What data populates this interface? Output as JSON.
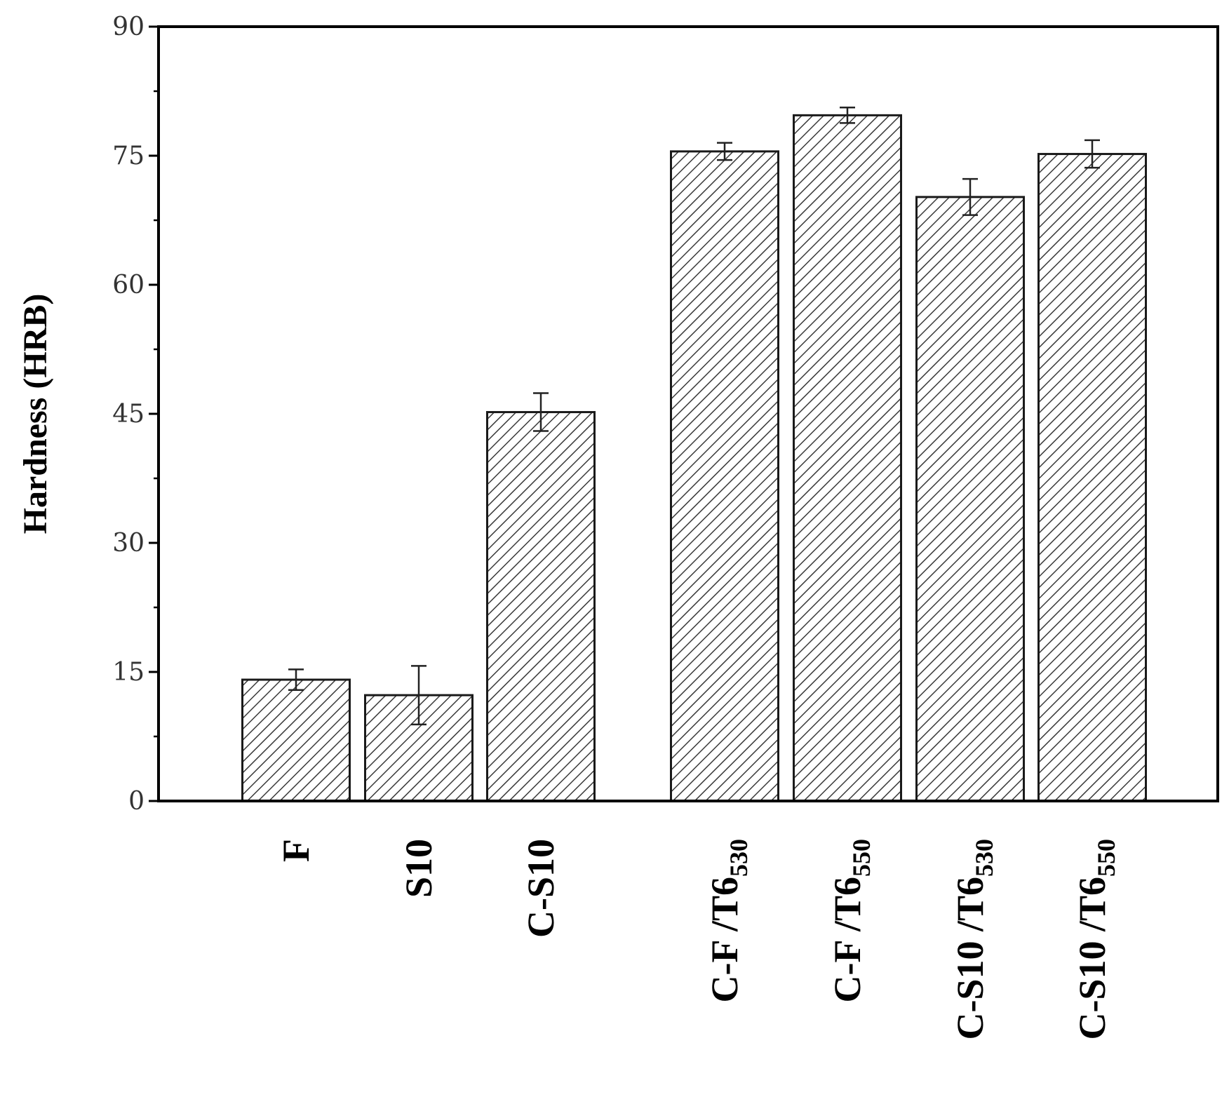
{
  "chart_data": {
    "type": "bar",
    "ylabel": "Hardness (HRB)",
    "xlabel": "",
    "ylim": [
      0,
      90
    ],
    "yticks": [
      "0",
      "15",
      "30",
      "45",
      "60",
      "75",
      "90"
    ],
    "grid": false,
    "legend": "none",
    "bar_fill": "hatched-diagonal",
    "colors": {
      "bar_stroke": "#1a1a1a",
      "hatch": "#3a3a3a",
      "axis": "#000000",
      "tick_text": "#333333"
    },
    "categories": [
      {
        "main": "F",
        "sub": ""
      },
      {
        "main": "S10",
        "sub": ""
      },
      {
        "main": "C-S10",
        "sub": ""
      },
      {
        "main": "C-F /T6",
        "sub": "530"
      },
      {
        "main": "C-F /T6",
        "sub": "550"
      },
      {
        "main": "C-S10 /T6",
        "sub": "530"
      },
      {
        "main": "C-S10 /T6",
        "sub": "550"
      }
    ],
    "values": [
      14.1,
      12.3,
      45.2,
      75.5,
      79.7,
      70.2,
      75.2
    ],
    "errors": [
      1.2,
      3.4,
      2.2,
      1.0,
      0.9,
      2.1,
      1.6
    ]
  }
}
